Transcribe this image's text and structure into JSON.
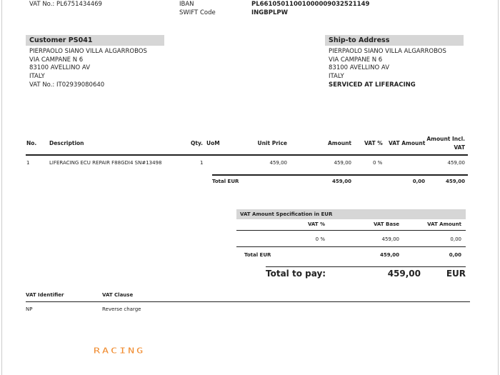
{
  "header": {
    "vat_no": "VAT No.: PL6751434469",
    "iban_label": "IBAN",
    "iban_value": "PL66105011001000009032521149",
    "swift_label": "SWIFT Code",
    "swift_value": "INGBPLPW"
  },
  "customer": {
    "title": "Customer PS041",
    "lines": [
      "PIERPAOLO SIANO VILLA ALGARROBOS",
      "VIA CAMPANE N 6",
      "83100 AVELLINO AV",
      "ITALY",
      "VAT No.: IT02939080640"
    ]
  },
  "ship_to": {
    "title": "Ship-to Address",
    "lines": [
      "PIERPAOLO SIANO VILLA ALGARROBOS",
      "VIA CAMPANE N 6",
      "83100 AVELLINO AV",
      "ITALY"
    ],
    "note": "SERVICED AT LIFERACING"
  },
  "lines_table": {
    "headers": {
      "no": "No.",
      "description": "Description",
      "qty": "Qty.",
      "uom": "UoM",
      "unit_price": "Unit Price",
      "amount": "Amount",
      "vat_pct": "VAT %",
      "vat_amount": "VAT Amount",
      "amount_incl_1": "Amount Incl.",
      "amount_incl_2": "VAT"
    },
    "rows": [
      {
        "no": "1",
        "description": "LIFERACING ECU REPAIR F88GDI4 SN#13498",
        "qty": "1",
        "uom": "",
        "unit_price": "459,00",
        "amount": "459,00",
        "vat_pct": "0 %",
        "vat_amount": "",
        "amount_incl": "459,00"
      }
    ],
    "total": {
      "label": "Total EUR",
      "amount": "459,00",
      "vat_amount": "0,00",
      "amount_incl": "459,00"
    }
  },
  "vat_spec": {
    "title": "VAT Amount Specification in EUR",
    "headers": {
      "vat_pct": "VAT %",
      "vat_base": "VAT Base",
      "vat_amount": "VAT Amount"
    },
    "rows": [
      {
        "vat_pct": "0 %",
        "vat_base": "459,00",
        "vat_amount": "0,00"
      }
    ],
    "total": {
      "label": "Total EUR",
      "vat_base": "459,00",
      "vat_amount": "0,00"
    }
  },
  "total_to_pay": {
    "label": "Total to pay:",
    "amount": "459,00",
    "currency": "EUR"
  },
  "vat_clause": {
    "headers": {
      "identifier": "VAT Identifier",
      "clause": "VAT Clause"
    },
    "rows": [
      {
        "identifier": "NP",
        "clause": "Reverse charge"
      }
    ]
  },
  "logo": {
    "text": "RACING",
    "color": "#f08a2c"
  }
}
